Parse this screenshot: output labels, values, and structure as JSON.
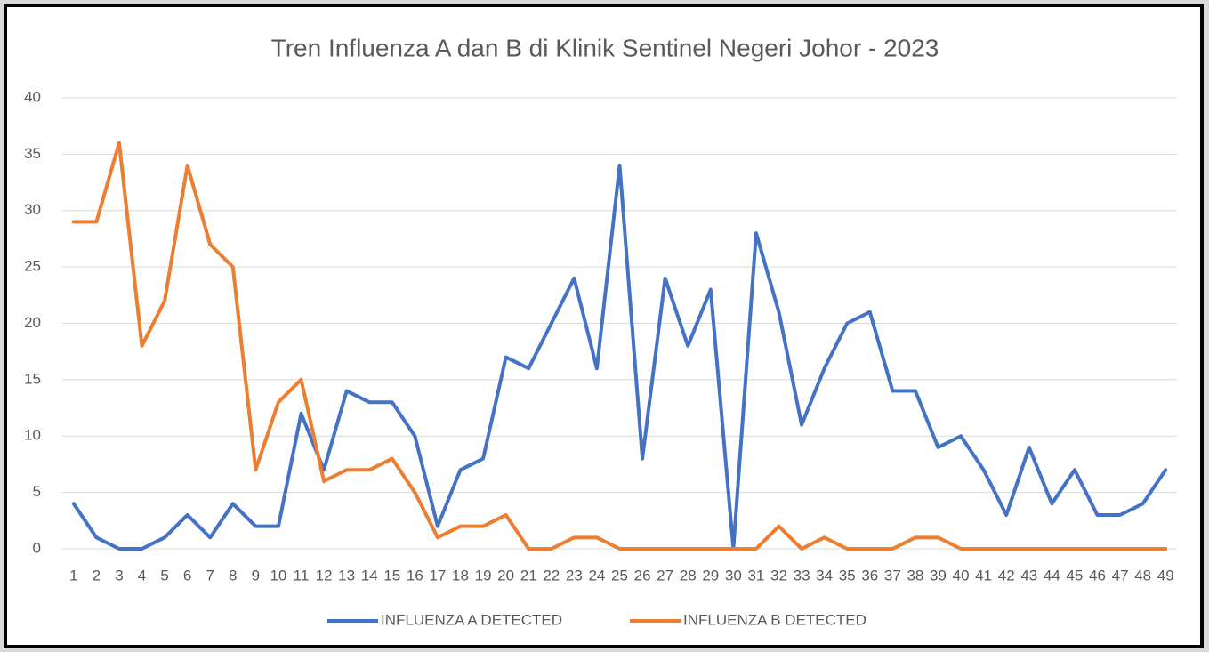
{
  "chart_data": {
    "type": "line",
    "title": "Tren Influenza A dan B di Klinik Sentinel Negeri Johor - 2023",
    "categories": [
      "1",
      "2",
      "3",
      "4",
      "5",
      "6",
      "7",
      "8",
      "9",
      "10",
      "11",
      "12",
      "13",
      "14",
      "15",
      "16",
      "17",
      "18",
      "19",
      "20",
      "21",
      "22",
      "23",
      "24",
      "25",
      "26",
      "27",
      "28",
      "29",
      "30",
      "31",
      "32",
      "33",
      "34",
      "35",
      "36",
      "37",
      "38",
      "39",
      "40",
      "41",
      "42",
      "43",
      "44",
      "45",
      "46",
      "47",
      "48",
      "49"
    ],
    "series": [
      {
        "name": "INFLUENZA A DETECTED",
        "color": "#4472c4",
        "values": [
          4,
          1,
          0,
          0,
          1,
          3,
          1,
          4,
          2,
          2,
          12,
          7,
          14,
          13,
          13,
          10,
          2,
          7,
          8,
          17,
          16,
          20,
          24,
          16,
          34,
          8,
          24,
          18,
          23,
          0,
          28,
          21,
          11,
          16,
          20,
          21,
          14,
          14,
          9,
          10,
          7,
          3,
          9,
          4,
          7,
          3,
          3,
          4,
          7
        ]
      },
      {
        "name": "INFLUENZA B DETECTED",
        "color": "#ed7d31",
        "values": [
          29,
          29,
          36,
          18,
          22,
          34,
          27,
          25,
          7,
          13,
          15,
          6,
          7,
          7,
          8,
          5,
          1,
          2,
          2,
          3,
          0,
          0,
          1,
          1,
          0,
          0,
          0,
          0,
          0,
          0,
          0,
          2,
          0,
          1,
          0,
          0,
          0,
          1,
          1,
          0,
          0,
          0,
          0,
          0,
          0,
          0,
          0,
          0,
          0
        ]
      }
    ],
    "ylim": [
      0,
      40
    ],
    "yticks": [
      0,
      5,
      10,
      15,
      20,
      25,
      30,
      35,
      40
    ],
    "grid": true,
    "legend": "bottom"
  }
}
